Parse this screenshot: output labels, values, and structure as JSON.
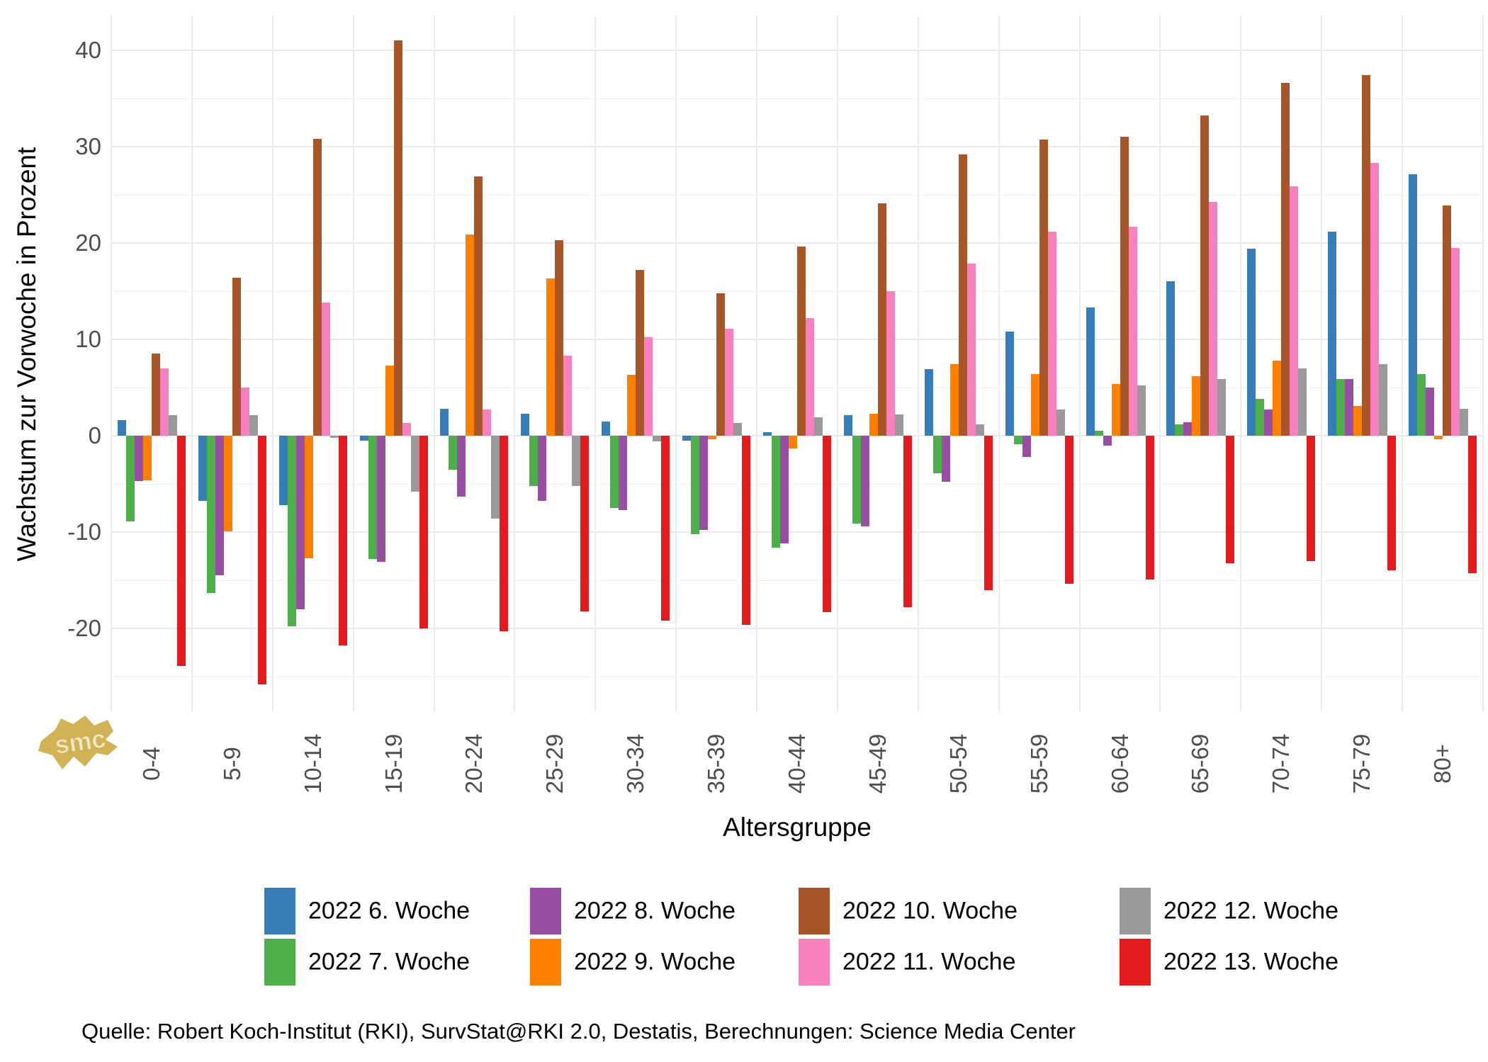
{
  "chart_data": {
    "type": "bar",
    "title": "",
    "xlabel": "Altersgruppe",
    "ylabel": "Wachstum zur Vorwoche in Prozent",
    "categories": [
      "0-4",
      "5-9",
      "10-14",
      "15-19",
      "20-24",
      "25-29",
      "30-34",
      "35-39",
      "40-44",
      "45-49",
      "50-54",
      "55-59",
      "60-64",
      "65-69",
      "70-74",
      "75-79",
      "80+"
    ],
    "series": [
      {
        "name": "2022 6. Woche",
        "color": "#377eb8",
        "values": [
          1.6,
          -6.8,
          -7.2,
          -0.5,
          2.8,
          2.3,
          1.5,
          -0.5,
          0.4,
          2.1,
          6.9,
          10.8,
          13.3,
          16.0,
          19.4,
          21.2,
          27.1
        ]
      },
      {
        "name": "2022 7. Woche",
        "color": "#4daf4a",
        "values": [
          -8.9,
          -16.3,
          -19.8,
          -12.8,
          -3.5,
          -5.2,
          -7.5,
          -10.2,
          -11.6,
          -9.1,
          -3.9,
          -0.9,
          0.5,
          1.2,
          3.8,
          5.9,
          6.4
        ]
      },
      {
        "name": "2022 8. Woche",
        "color": "#984ea3",
        "values": [
          -4.7,
          -14.5,
          -18.0,
          -13.1,
          -6.3,
          -6.8,
          -7.7,
          -9.8,
          -11.2,
          -9.4,
          -4.8,
          -2.2,
          -1.0,
          1.4,
          2.7,
          5.9,
          5.0
        ]
      },
      {
        "name": "2022 9. Woche",
        "color": "#ff7f00",
        "values": [
          -4.6,
          -9.9,
          -12.7,
          7.3,
          20.9,
          16.3,
          6.3,
          -0.4,
          -1.3,
          2.3,
          7.4,
          6.4,
          5.4,
          6.2,
          7.8,
          3.1,
          -0.4
        ]
      },
      {
        "name": "2022 10. Woche",
        "color": "#a65628",
        "values": [
          8.5,
          16.4,
          30.8,
          41.0,
          26.9,
          20.3,
          17.2,
          14.8,
          19.6,
          24.1,
          29.2,
          30.7,
          31.0,
          33.2,
          36.6,
          37.4,
          23.9
        ]
      },
      {
        "name": "2022 11. Woche",
        "color": "#f781bf",
        "values": [
          7.0,
          5.0,
          13.8,
          1.3,
          2.7,
          8.3,
          10.2,
          11.1,
          12.2,
          15.0,
          17.9,
          21.2,
          21.7,
          24.3,
          25.9,
          28.3,
          19.5
        ]
      },
      {
        "name": "2022 12. Woche",
        "color": "#999999",
        "values": [
          2.1,
          2.1,
          -0.2,
          -5.8,
          -8.6,
          -5.2,
          -0.6,
          1.3,
          1.9,
          2.2,
          1.2,
          2.7,
          5.2,
          5.9,
          7.0,
          7.4,
          2.8
        ]
      },
      {
        "name": "2022 13. Woche",
        "color": "#e41a1c",
        "values": [
          -23.9,
          -25.8,
          -21.8,
          -20.0,
          -20.3,
          -18.2,
          -19.2,
          -19.6,
          -18.3,
          -17.8,
          -16.0,
          -15.4,
          -14.9,
          -13.2,
          -13.0,
          -14.0,
          -14.3
        ]
      }
    ],
    "y_ticks": [
      40,
      30,
      20,
      10,
      0,
      -10,
      -20
    ],
    "y_minor_ticks": [
      35,
      25,
      15,
      5,
      -5,
      -15,
      -25
    ],
    "ylim": [
      -28.5,
      43.5
    ],
    "grid": true,
    "legend_position": "bottom"
  },
  "footer": {
    "source": "Quelle: Robert Koch-Institut (RKI), SurvStat@RKI 2.0, Destatis, Berechnungen: Science Media Center"
  },
  "logo": {
    "text": "smc",
    "color": "#d1b254"
  }
}
